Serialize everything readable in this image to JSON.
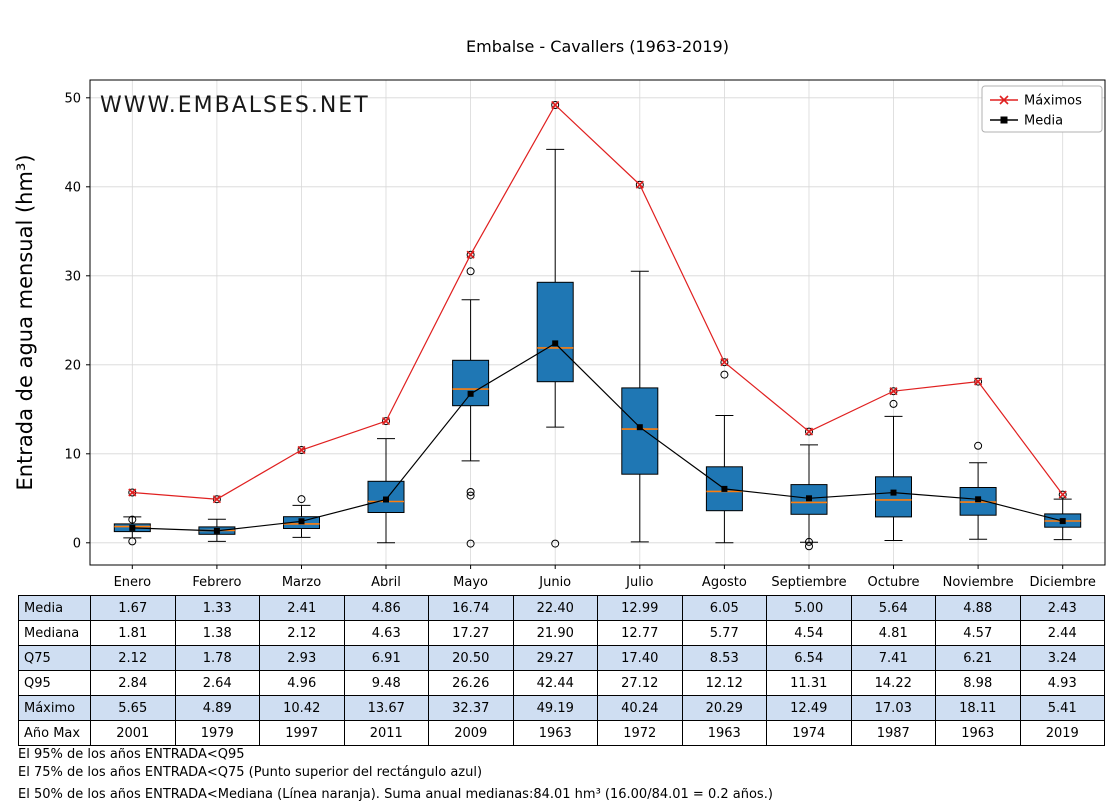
{
  "watermark": "WWW.EMBALSES.NET",
  "watermark_color": "#8aa9cc",
  "chart_data": {
    "type": "boxplot",
    "title": "Embalse - Cavallers (1963-2019)",
    "ylabel": "Entrada de agua mensual (hm³)",
    "ylabel_color": "#1f77b4",
    "ylim": [
      -2.5,
      52
    ],
    "yticks": [
      0,
      10,
      20,
      30,
      40,
      50
    ],
    "grid": true,
    "legend_position": "top-right",
    "box_fill": "#1f77b4",
    "median_color": "#ff7f0e",
    "categories": [
      "Enero",
      "Febrero",
      "Marzo",
      "Abril",
      "Mayo",
      "Junio",
      "Julio",
      "Agosto",
      "Septiembre",
      "Octubre",
      "Noviembre",
      "Diciembre"
    ],
    "series": [
      {
        "name": "Máximos",
        "type": "line",
        "marker": "x",
        "color": "#e02020",
        "values": [
          5.65,
          4.89,
          10.42,
          13.67,
          32.37,
          49.19,
          40.24,
          20.29,
          12.49,
          17.03,
          18.11,
          5.41
        ]
      },
      {
        "name": "Media",
        "type": "line",
        "marker": "square",
        "color": "#000000",
        "values": [
          1.67,
          1.33,
          2.41,
          4.86,
          16.74,
          22.4,
          12.99,
          6.05,
          5.0,
          5.64,
          4.88,
          2.43
        ]
      }
    ],
    "boxes": [
      {
        "month": "Enero",
        "q1": 1.25,
        "median": 1.81,
        "q3": 2.12,
        "whisker_low": 0.55,
        "whisker_high": 2.9,
        "outliers": [
          5.65,
          2.6,
          0.15
        ]
      },
      {
        "month": "Febrero",
        "q1": 0.95,
        "median": 1.38,
        "q3": 1.78,
        "whisker_low": 0.15,
        "whisker_high": 2.65,
        "outliers": [
          4.89
        ]
      },
      {
        "month": "Marzo",
        "q1": 1.6,
        "median": 2.12,
        "q3": 2.93,
        "whisker_low": 0.6,
        "whisker_high": 4.2,
        "outliers": [
          10.42,
          4.9
        ]
      },
      {
        "month": "Abril",
        "q1": 3.4,
        "median": 4.63,
        "q3": 6.91,
        "whisker_low": 0.0,
        "whisker_high": 11.7,
        "outliers": [
          13.67
        ]
      },
      {
        "month": "Mayo",
        "q1": 15.4,
        "median": 17.27,
        "q3": 20.5,
        "whisker_low": 9.2,
        "whisker_high": 27.3,
        "outliers": [
          32.37,
          30.5,
          5.7,
          5.3,
          -0.1
        ]
      },
      {
        "month": "Junio",
        "q1": 18.1,
        "median": 21.9,
        "q3": 29.27,
        "whisker_low": 13.0,
        "whisker_high": 44.2,
        "outliers": [
          49.19,
          -0.1
        ]
      },
      {
        "month": "Julio",
        "q1": 7.7,
        "median": 12.77,
        "q3": 17.4,
        "whisker_low": 0.1,
        "whisker_high": 30.5,
        "outliers": [
          40.24
        ]
      },
      {
        "month": "Agosto",
        "q1": 3.6,
        "median": 5.77,
        "q3": 8.53,
        "whisker_low": 0.0,
        "whisker_high": 14.3,
        "outliers": [
          20.29,
          18.9
        ]
      },
      {
        "month": "Septiembre",
        "q1": 3.2,
        "median": 4.54,
        "q3": 6.54,
        "whisker_low": 0.05,
        "whisker_high": 11.0,
        "outliers": [
          12.49,
          0.1,
          -0.4
        ]
      },
      {
        "month": "Octubre",
        "q1": 2.9,
        "median": 4.81,
        "q3": 7.41,
        "whisker_low": 0.25,
        "whisker_high": 14.2,
        "outliers": [
          17.03,
          15.6
        ]
      },
      {
        "month": "Noviembre",
        "q1": 3.1,
        "median": 4.57,
        "q3": 6.21,
        "whisker_low": 0.4,
        "whisker_high": 9.0,
        "outliers": [
          18.11,
          10.9
        ]
      },
      {
        "month": "Diciembre",
        "q1": 1.75,
        "median": 2.44,
        "q3": 3.24,
        "whisker_low": 0.35,
        "whisker_high": 4.9,
        "outliers": [
          5.41
        ]
      }
    ]
  },
  "table": {
    "shade_color": "#cfdef2",
    "row_headers": [
      "Media",
      "Mediana",
      "Q75",
      "Q95",
      "Máximo",
      "Año Max"
    ],
    "rows": [
      [
        "1.67",
        "1.33",
        "2.41",
        "4.86",
        "16.74",
        "22.40",
        "12.99",
        "6.05",
        "5.00",
        "5.64",
        "4.88",
        "2.43"
      ],
      [
        "1.81",
        "1.38",
        "2.12",
        "4.63",
        "17.27",
        "21.90",
        "12.77",
        "5.77",
        "4.54",
        "4.81",
        "4.57",
        "2.44"
      ],
      [
        "2.12",
        "1.78",
        "2.93",
        "6.91",
        "20.50",
        "29.27",
        "17.40",
        "8.53",
        "6.54",
        "7.41",
        "6.21",
        "3.24"
      ],
      [
        "2.84",
        "2.64",
        "4.96",
        "9.48",
        "26.26",
        "42.44",
        "27.12",
        "12.12",
        "11.31",
        "14.22",
        "8.98",
        "4.93"
      ],
      [
        "5.65",
        "4.89",
        "10.42",
        "13.67",
        "32.37",
        "49.19",
        "40.24",
        "20.29",
        "12.49",
        "17.03",
        "18.11",
        "5.41"
      ],
      [
        "2001",
        "1979",
        "1997",
        "2011",
        "2009",
        "1963",
        "1972",
        "1963",
        "1974",
        "1987",
        "1963",
        "2019"
      ]
    ]
  },
  "footnotes": [
    "El 95% de los años ENTRADA<Q95",
    "El 75% de los años ENTRADA<Q75 (Punto superior del rectángulo azul)",
    "El 50% de los años ENTRADA<Mediana (Línea naranja). Suma anual medianas:84.01 hm³ (16.00/84.01 = 0.2 años.)"
  ]
}
